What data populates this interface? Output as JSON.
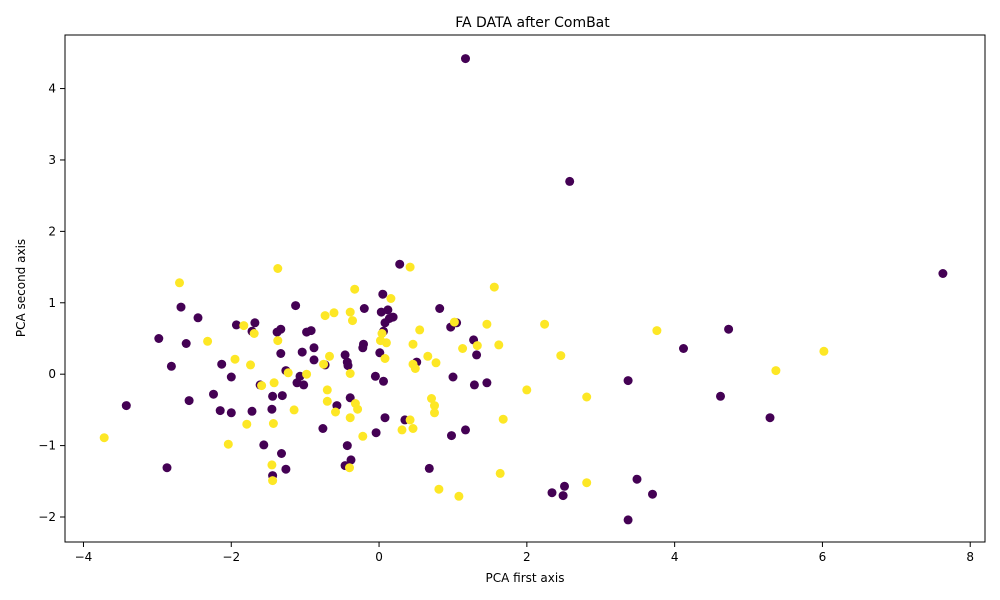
{
  "chart_data": {
    "type": "scatter",
    "title": "FA DATA after ComBat",
    "xlabel": "PCA first axis",
    "ylabel": "PCA second axis",
    "xlim": [
      -4.25,
      8.2
    ],
    "ylim": [
      -2.35,
      4.75
    ],
    "x_ticks": [
      -4,
      -2,
      0,
      2,
      4,
      6,
      8
    ],
    "y_ticks": [
      -2,
      -1,
      0,
      1,
      2,
      3,
      4
    ],
    "grid": false,
    "legend": "none",
    "series": [
      {
        "color": "#440154",
        "points": [
          [
            1.17,
            4.42
          ],
          [
            2.58,
            2.7
          ],
          [
            7.63,
            1.41
          ],
          [
            0.28,
            1.54
          ],
          [
            4.73,
            0.63
          ],
          [
            4.12,
            0.36
          ],
          [
            4.62,
            -0.31
          ],
          [
            5.29,
            -0.61
          ],
          [
            3.37,
            -0.09
          ],
          [
            3.49,
            -1.47
          ],
          [
            3.7,
            -1.68
          ],
          [
            3.37,
            -2.04
          ],
          [
            2.34,
            -1.66
          ],
          [
            2.51,
            -1.57
          ],
          [
            2.49,
            -1.7
          ],
          [
            1.28,
            0.48
          ],
          [
            1.32,
            0.27
          ],
          [
            1.46,
            -0.12
          ],
          [
            1.29,
            -0.15
          ],
          [
            1.17,
            -0.78
          ],
          [
            0.98,
            -0.86
          ],
          [
            1.0,
            -0.04
          ],
          [
            1.05,
            0.72
          ],
          [
            0.97,
            0.66
          ],
          [
            0.82,
            0.92
          ],
          [
            0.68,
            -1.32
          ],
          [
            0.51,
            0.17
          ],
          [
            0.35,
            -0.64
          ],
          [
            0.19,
            0.8
          ],
          [
            0.14,
            0.78
          ],
          [
            0.12,
            0.9
          ],
          [
            0.08,
            0.72
          ],
          [
            0.05,
            1.12
          ],
          [
            0.03,
            0.87
          ],
          [
            0.06,
            0.6
          ],
          [
            0.01,
            0.3
          ],
          [
            0.06,
            -0.1
          ],
          [
            0.08,
            -0.61
          ],
          [
            -0.05,
            -0.03
          ],
          [
            -0.04,
            -0.82
          ],
          [
            -0.2,
            0.92
          ],
          [
            -0.21,
            0.42
          ],
          [
            -0.22,
            0.37
          ],
          [
            -0.46,
            0.27
          ],
          [
            -0.43,
            0.17
          ],
          [
            -0.42,
            0.12
          ],
          [
            -0.39,
            -0.33
          ],
          [
            -0.43,
            -1.0
          ],
          [
            -0.38,
            -1.2
          ],
          [
            -0.46,
            -1.28
          ],
          [
            -0.57,
            -0.44
          ],
          [
            -0.76,
            -0.76
          ],
          [
            -0.73,
            0.13
          ],
          [
            -0.88,
            0.37
          ],
          [
            -0.88,
            0.2
          ],
          [
            -0.92,
            0.61
          ],
          [
            -0.98,
            0.59
          ],
          [
            -1.04,
            0.31
          ],
          [
            -1.02,
            -0.15
          ],
          [
            -1.07,
            -0.03
          ],
          [
            -1.11,
            -0.12
          ],
          [
            -1.13,
            0.96
          ],
          [
            -1.26,
            0.05
          ],
          [
            -1.31,
            -0.3
          ],
          [
            -1.32,
            -1.11
          ],
          [
            -1.26,
            -1.33
          ],
          [
            -1.33,
            0.63
          ],
          [
            -1.33,
            0.29
          ],
          [
            -1.38,
            0.59
          ],
          [
            -1.45,
            -0.49
          ],
          [
            -1.44,
            -0.31
          ],
          [
            -1.44,
            -1.42
          ],
          [
            -1.56,
            -0.99
          ],
          [
            -1.61,
            -0.15
          ],
          [
            -1.68,
            0.72
          ],
          [
            -1.72,
            0.6
          ],
          [
            -1.72,
            -0.52
          ],
          [
            -1.93,
            0.69
          ],
          [
            -2.0,
            -0.04
          ],
          [
            -2.0,
            -0.54
          ],
          [
            -2.13,
            0.14
          ],
          [
            -2.15,
            -0.51
          ],
          [
            -2.24,
            -0.28
          ],
          [
            -2.45,
            0.79
          ],
          [
            -2.57,
            -0.37
          ],
          [
            -2.61,
            0.43
          ],
          [
            -2.68,
            0.94
          ],
          [
            -2.81,
            0.11
          ],
          [
            -2.87,
            -1.31
          ],
          [
            -2.98,
            0.5
          ],
          [
            -3.42,
            -0.44
          ]
        ]
      },
      {
        "color": "#fde725",
        "points": [
          [
            6.02,
            0.32
          ],
          [
            5.37,
            0.05
          ],
          [
            3.76,
            0.61
          ],
          [
            2.81,
            -0.32
          ],
          [
            2.81,
            -1.52
          ],
          [
            2.46,
            0.26
          ],
          [
            2.24,
            0.7
          ],
          [
            2.0,
            -0.22
          ],
          [
            1.68,
            -0.63
          ],
          [
            1.64,
            -1.39
          ],
          [
            1.62,
            0.41
          ],
          [
            1.56,
            1.22
          ],
          [
            1.46,
            0.7
          ],
          [
            1.33,
            0.4
          ],
          [
            1.13,
            0.36
          ],
          [
            1.08,
            -1.71
          ],
          [
            1.02,
            0.73
          ],
          [
            0.81,
            -1.61
          ],
          [
            0.77,
            0.16
          ],
          [
            0.75,
            -0.44
          ],
          [
            0.75,
            -0.54
          ],
          [
            0.71,
            -0.34
          ],
          [
            0.66,
            0.25
          ],
          [
            0.55,
            0.62
          ],
          [
            0.49,
            0.08
          ],
          [
            0.46,
            0.14
          ],
          [
            0.46,
            0.42
          ],
          [
            0.46,
            -0.76
          ],
          [
            0.42,
            -0.64
          ],
          [
            0.31,
            -0.78
          ],
          [
            0.42,
            1.5
          ],
          [
            0.16,
            1.06
          ],
          [
            0.1,
            0.44
          ],
          [
            0.08,
            0.22
          ],
          [
            0.04,
            0.57
          ],
          [
            0.02,
            0.47
          ],
          [
            -0.22,
            -0.87
          ],
          [
            -0.29,
            -0.49
          ],
          [
            -0.32,
            -0.41
          ],
          [
            -0.33,
            1.19
          ],
          [
            -0.36,
            0.75
          ],
          [
            -0.39,
            0.87
          ],
          [
            -0.39,
            0.01
          ],
          [
            -0.39,
            -0.61
          ],
          [
            -0.4,
            -1.31
          ],
          [
            -0.59,
            -0.53
          ],
          [
            -0.61,
            0.86
          ],
          [
            -0.67,
            0.25
          ],
          [
            -0.7,
            -0.38
          ],
          [
            -0.7,
            -0.22
          ],
          [
            -0.73,
            0.82
          ],
          [
            -0.75,
            0.14
          ],
          [
            -0.98,
            0.0
          ],
          [
            -1.15,
            -0.5
          ],
          [
            -1.23,
            0.02
          ],
          [
            -1.37,
            1.48
          ],
          [
            -1.37,
            0.47
          ],
          [
            -1.42,
            -0.12
          ],
          [
            -1.43,
            -0.69
          ],
          [
            -1.45,
            -1.27
          ],
          [
            -1.44,
            -1.49
          ],
          [
            -1.59,
            -0.16
          ],
          [
            -1.69,
            0.57
          ],
          [
            -1.74,
            0.13
          ],
          [
            -1.79,
            -0.7
          ],
          [
            -1.83,
            0.68
          ],
          [
            -1.95,
            0.21
          ],
          [
            -2.04,
            -0.98
          ],
          [
            -2.32,
            0.46
          ],
          [
            -2.7,
            1.28
          ],
          [
            -3.72,
            -0.89
          ]
        ]
      }
    ]
  }
}
